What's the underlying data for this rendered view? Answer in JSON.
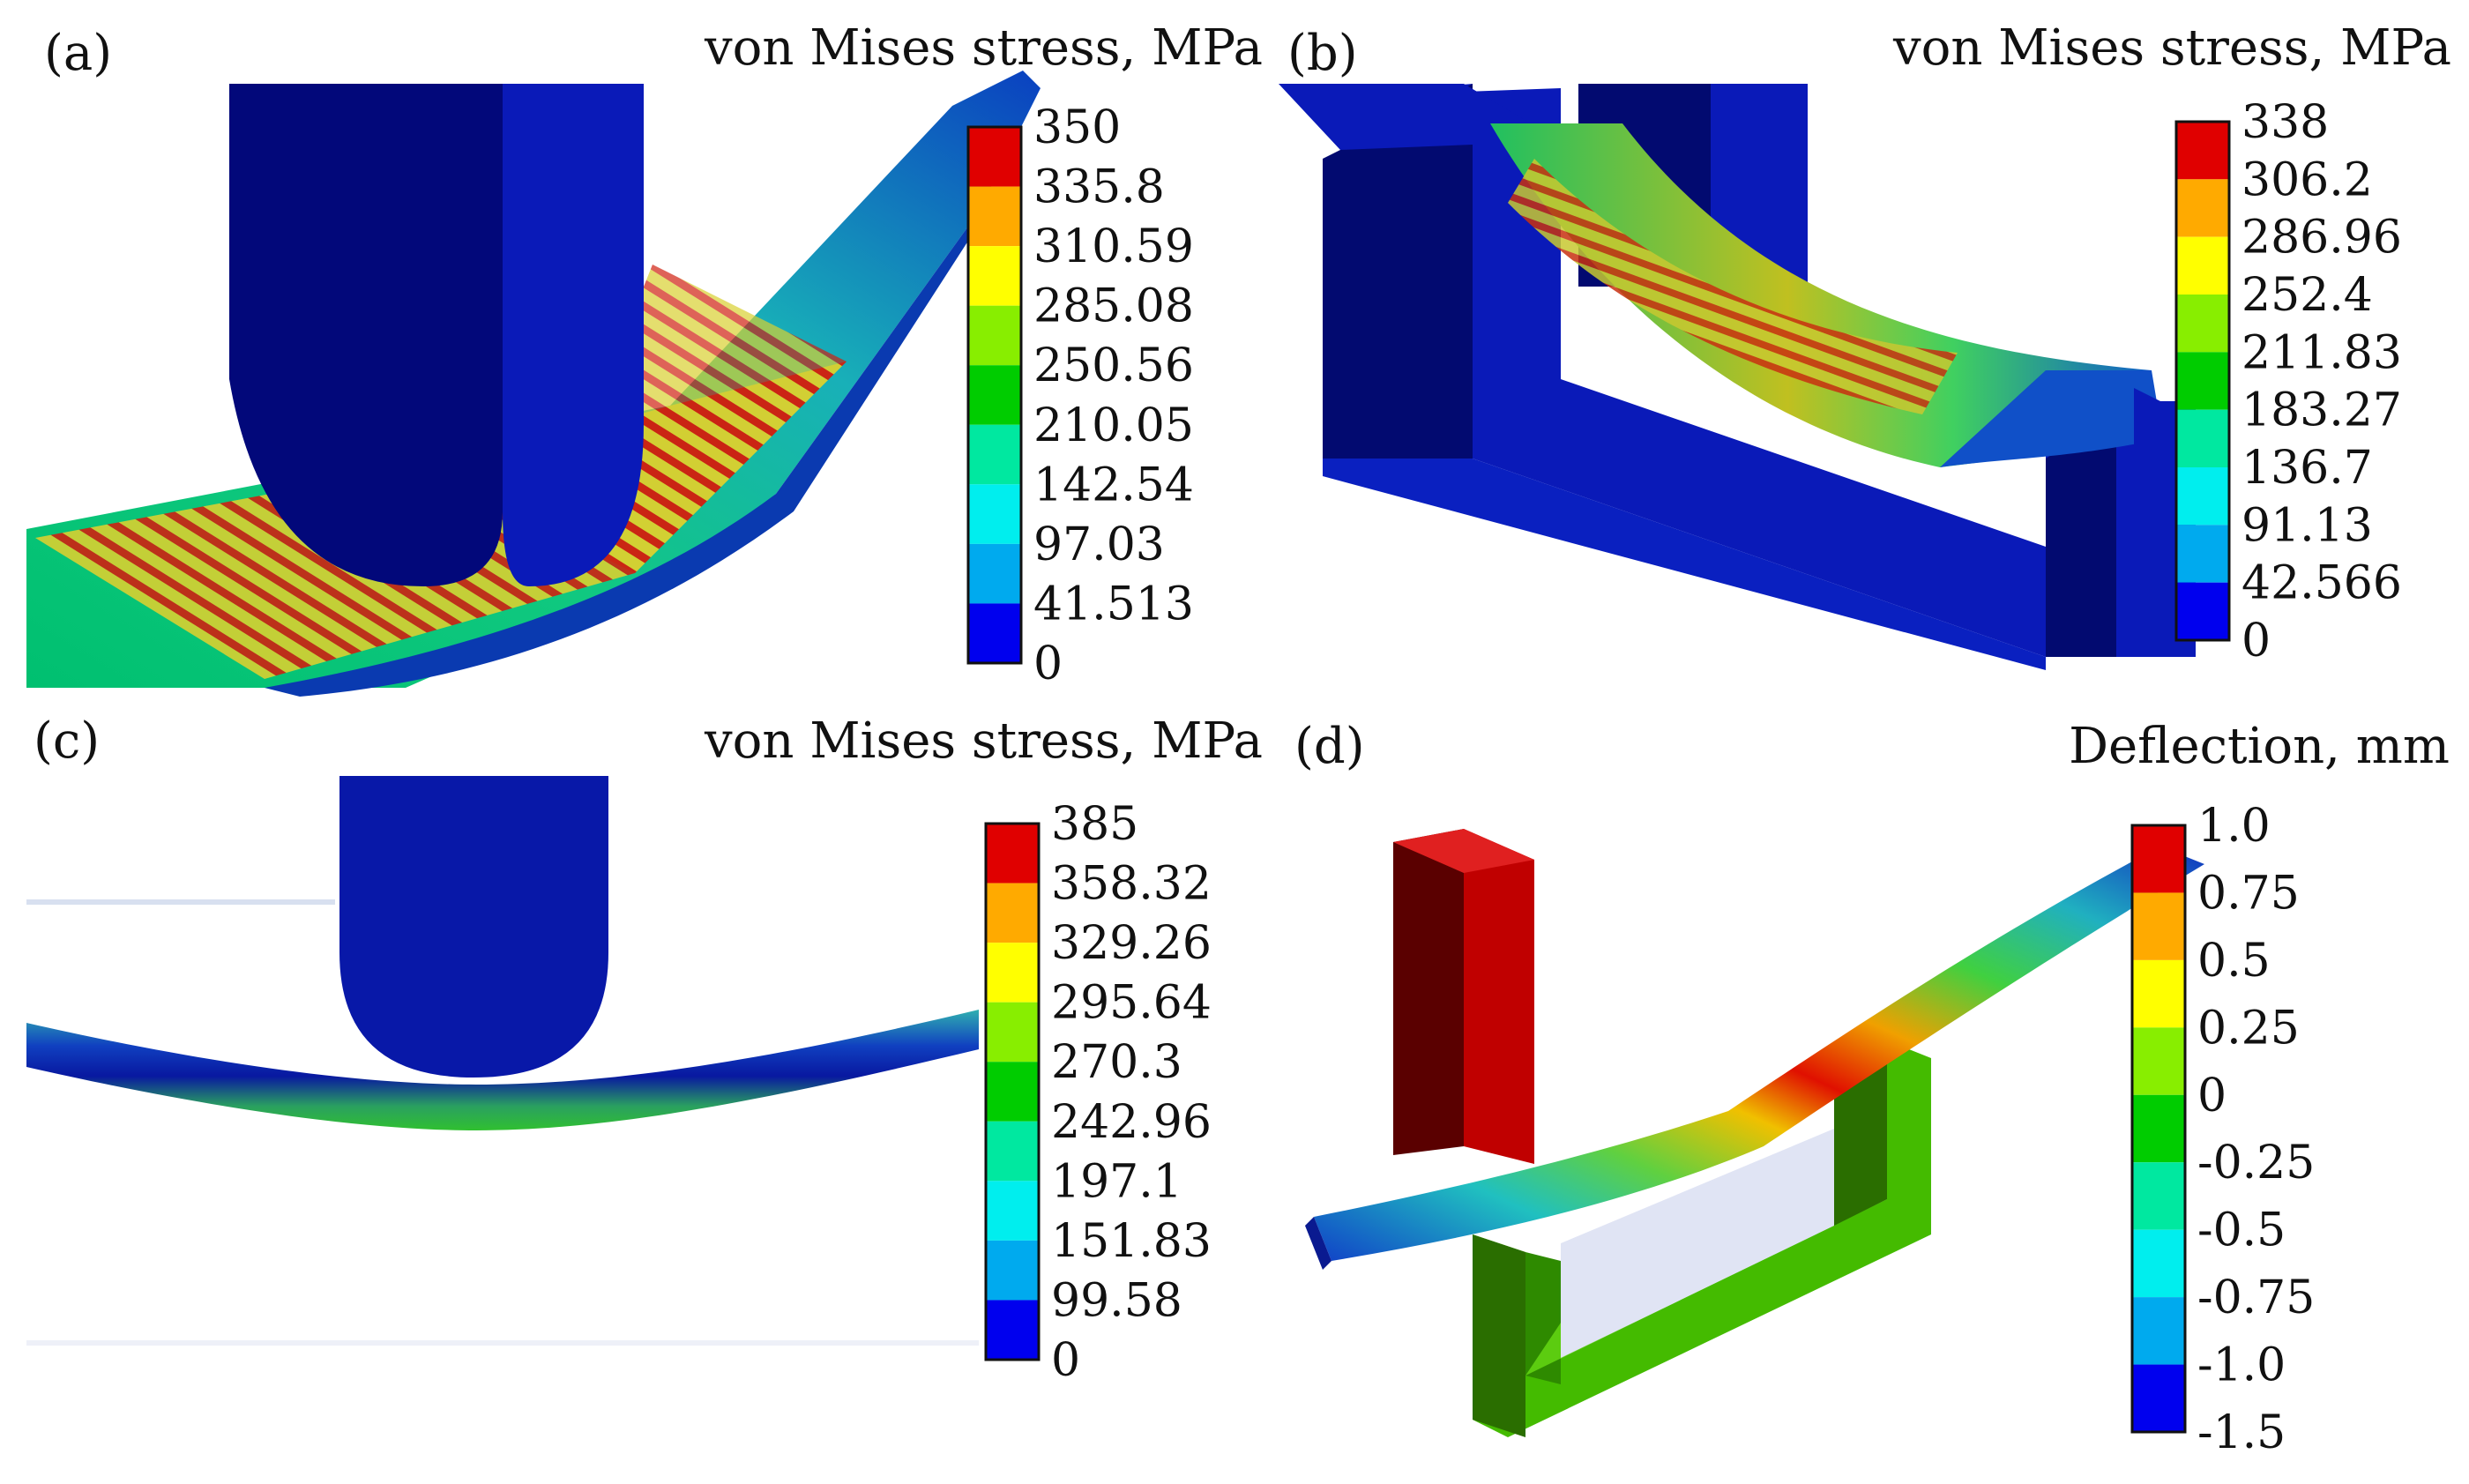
{
  "panels": [
    {
      "id": "a",
      "label": "(a)",
      "colorbar": {
        "title": "von Mises stress, MPa",
        "ticks": [
          "350",
          "335.8",
          "310.59",
          "285.08",
          "250.56",
          "210.05",
          "142.54",
          "97.03",
          "41.513",
          "0"
        ]
      }
    },
    {
      "id": "b",
      "label": "(b)",
      "colorbar": {
        "title": "von Mises stress, MPa",
        "ticks": [
          "338",
          "306.2",
          "286.96",
          "252.4",
          "211.83",
          "183.27",
          "136.7",
          "91.13",
          "42.566",
          "0"
        ]
      }
    },
    {
      "id": "c",
      "label": "(c)",
      "colorbar": {
        "title": "von Mises stress, MPa",
        "ticks": [
          "385",
          "358.32",
          "329.26",
          "295.64",
          "270.3",
          "242.96",
          "197.1",
          "151.83",
          "99.58",
          "0"
        ]
      }
    },
    {
      "id": "d",
      "label": "(d)",
      "colorbar": {
        "title": "Deflection, mm",
        "ticks": [
          "1.0",
          "0.75",
          "0.5",
          "0.25",
          "0",
          "-0.25",
          "-0.5",
          "-0.75",
          "-1.0",
          "-1.5"
        ]
      }
    }
  ],
  "colors": {
    "band_colors": [
      "#e00000",
      "#ffaa00",
      "#ffff00",
      "#88ee00",
      "#00cc00",
      "#00e8a0",
      "#00eeee",
      "#00aaee",
      "#0000ee"
    ],
    "tool_blue": "#020a80",
    "tool_face": "#0a1fb0",
    "support_red": "#cc0000",
    "support_green": "#44bb00"
  }
}
